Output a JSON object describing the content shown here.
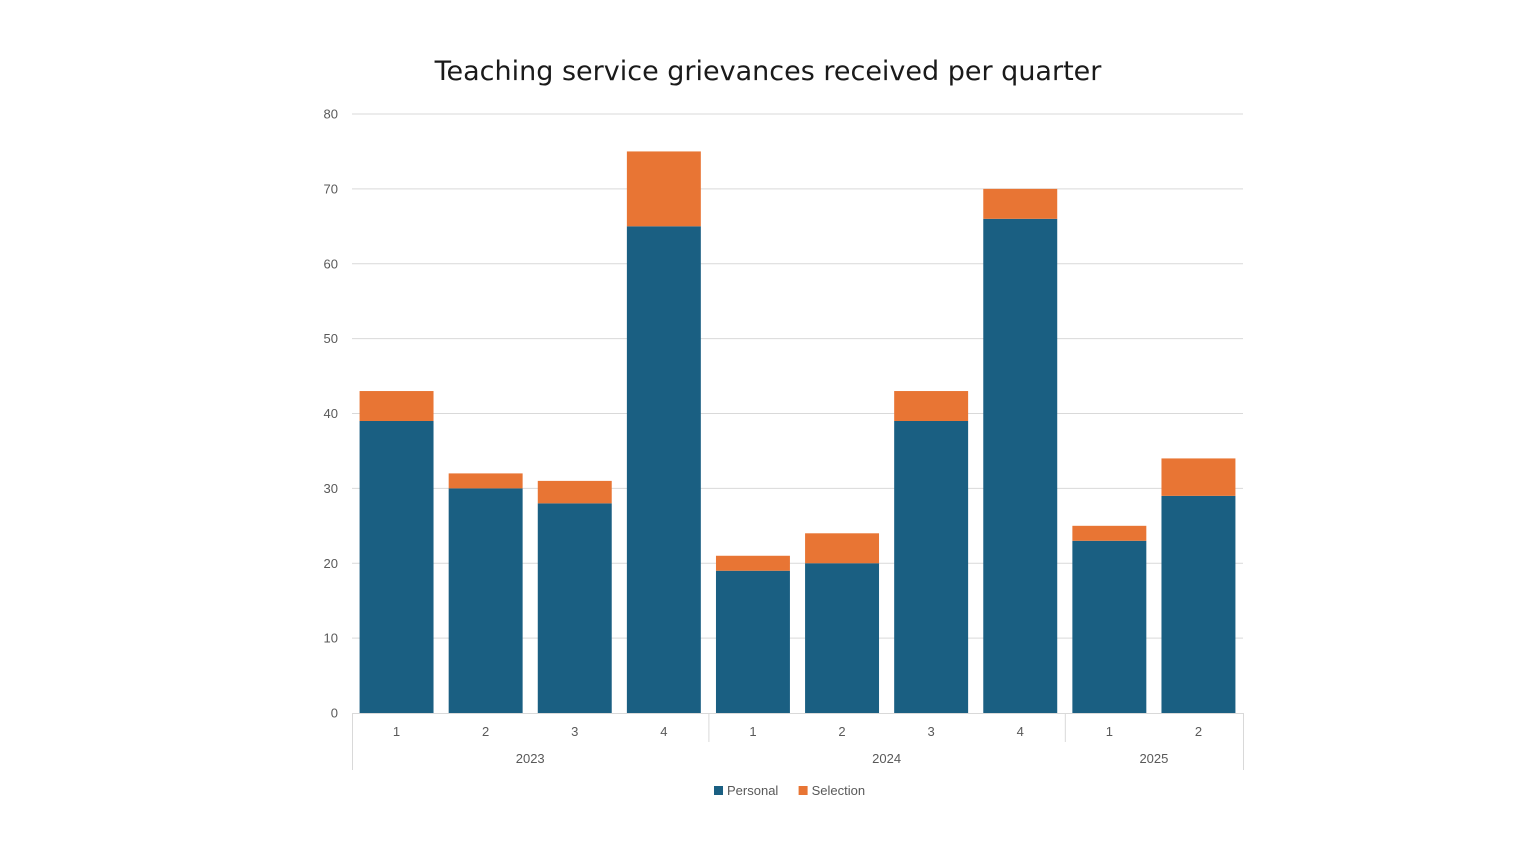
{
  "chart_data": {
    "type": "bar",
    "stacked": true,
    "title": "Teaching service grievances received per quarter",
    "xlabel": "",
    "ylabel": "",
    "ylim": [
      0,
      80
    ],
    "yticks": [
      "0",
      "10",
      "20",
      "30",
      "40",
      "50",
      "60",
      "70",
      "80"
    ],
    "categories": [
      "1",
      "2",
      "3",
      "4",
      "1",
      "2",
      "3",
      "4",
      "1",
      "2"
    ],
    "groups": [
      {
        "label": "2023",
        "count": 4
      },
      {
        "label": "2024",
        "count": 4
      },
      {
        "label": "2025",
        "count": 2
      }
    ],
    "series": [
      {
        "name": "Personal",
        "color": "#1a5f82",
        "values": [
          39,
          30,
          28,
          65,
          19,
          20,
          39,
          66,
          23,
          29
        ]
      },
      {
        "name": "Selection",
        "color": "#e87534",
        "values": [
          4,
          2,
          3,
          10,
          2,
          4,
          4,
          4,
          2,
          5
        ]
      }
    ],
    "grid": true,
    "legend": "bottom"
  }
}
